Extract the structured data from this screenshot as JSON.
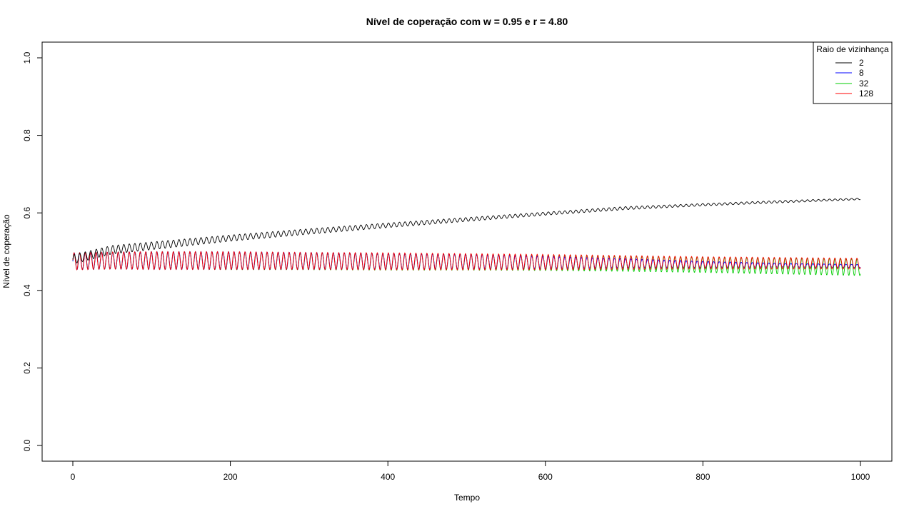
{
  "chart_data": {
    "type": "line",
    "title": "Nível de coperação com w = 0.95 e r = 4.80",
    "xlabel": "Tempo",
    "ylabel": "Nível de coperação",
    "xlim": [
      0,
      1000
    ],
    "ylim": [
      0,
      1
    ],
    "x_ticks": [
      "0",
      "200",
      "400",
      "600",
      "800",
      "1000"
    ],
    "y_ticks": [
      "0.0",
      "0.2",
      "0.4",
      "0.6",
      "0.8",
      "1.0"
    ],
    "grid": false,
    "legend": {
      "title": "Raio de vizinhança",
      "placement": "top-right",
      "entries": [
        {
          "label": "2",
          "color": "#000000"
        },
        {
          "label": "8",
          "color": "#0000ff"
        },
        {
          "label": "32",
          "color": "#00cc00"
        },
        {
          "label": "128",
          "color": "#ff0000"
        }
      ]
    },
    "series": [
      {
        "name": "2",
        "color": "#000000",
        "envelope_x": [
          0,
          50,
          100,
          150,
          200,
          300,
          400,
          500,
          600,
          700,
          800,
          900,
          1000
        ],
        "envelope_mean": [
          0.48,
          0.505,
          0.515,
          0.525,
          0.535,
          0.552,
          0.568,
          0.583,
          0.598,
          0.612,
          0.621,
          0.629,
          0.636
        ],
        "envelope_amplitude": [
          0.012,
          0.011,
          0.01,
          0.009,
          0.008,
          0.007,
          0.006,
          0.005,
          0.004,
          0.004,
          0.003,
          0.003,
          0.002
        ],
        "period": 7
      },
      {
        "name": "8",
        "color": "#0000ff",
        "envelope_x": [
          0,
          50,
          100,
          150,
          200,
          300,
          400,
          500,
          600,
          700,
          800,
          900,
          1000
        ],
        "envelope_mean": [
          0.475,
          0.477,
          0.477,
          0.477,
          0.477,
          0.476,
          0.475,
          0.474,
          0.472,
          0.47,
          0.467,
          0.465,
          0.463
        ],
        "envelope_amplitude": [
          0.022,
          0.022,
          0.023,
          0.023,
          0.023,
          0.022,
          0.021,
          0.019,
          0.016,
          0.012,
          0.008,
          0.005,
          0.004
        ],
        "period": 7
      },
      {
        "name": "32",
        "color": "#00cc00",
        "envelope_x": [
          0,
          50,
          100,
          150,
          200,
          300,
          400,
          500,
          600,
          700,
          800,
          900,
          1000
        ],
        "envelope_mean": [
          0.475,
          0.477,
          0.477,
          0.477,
          0.476,
          0.475,
          0.474,
          0.473,
          0.471,
          0.469,
          0.466,
          0.463,
          0.46
        ],
        "envelope_amplitude": [
          0.022,
          0.022,
          0.023,
          0.023,
          0.023,
          0.022,
          0.022,
          0.021,
          0.02,
          0.02,
          0.02,
          0.021,
          0.022
        ],
        "period": 7
      },
      {
        "name": "128",
        "color": "#ff0000",
        "envelope_x": [
          0,
          50,
          100,
          150,
          200,
          300,
          400,
          500,
          600,
          700,
          800,
          900,
          1000
        ],
        "envelope_mean": [
          0.475,
          0.477,
          0.477,
          0.477,
          0.477,
          0.476,
          0.475,
          0.474,
          0.473,
          0.472,
          0.471,
          0.47,
          0.469
        ],
        "envelope_amplitude": [
          0.022,
          0.022,
          0.023,
          0.023,
          0.023,
          0.022,
          0.022,
          0.021,
          0.02,
          0.018,
          0.016,
          0.015,
          0.014
        ],
        "period": 7
      }
    ]
  }
}
